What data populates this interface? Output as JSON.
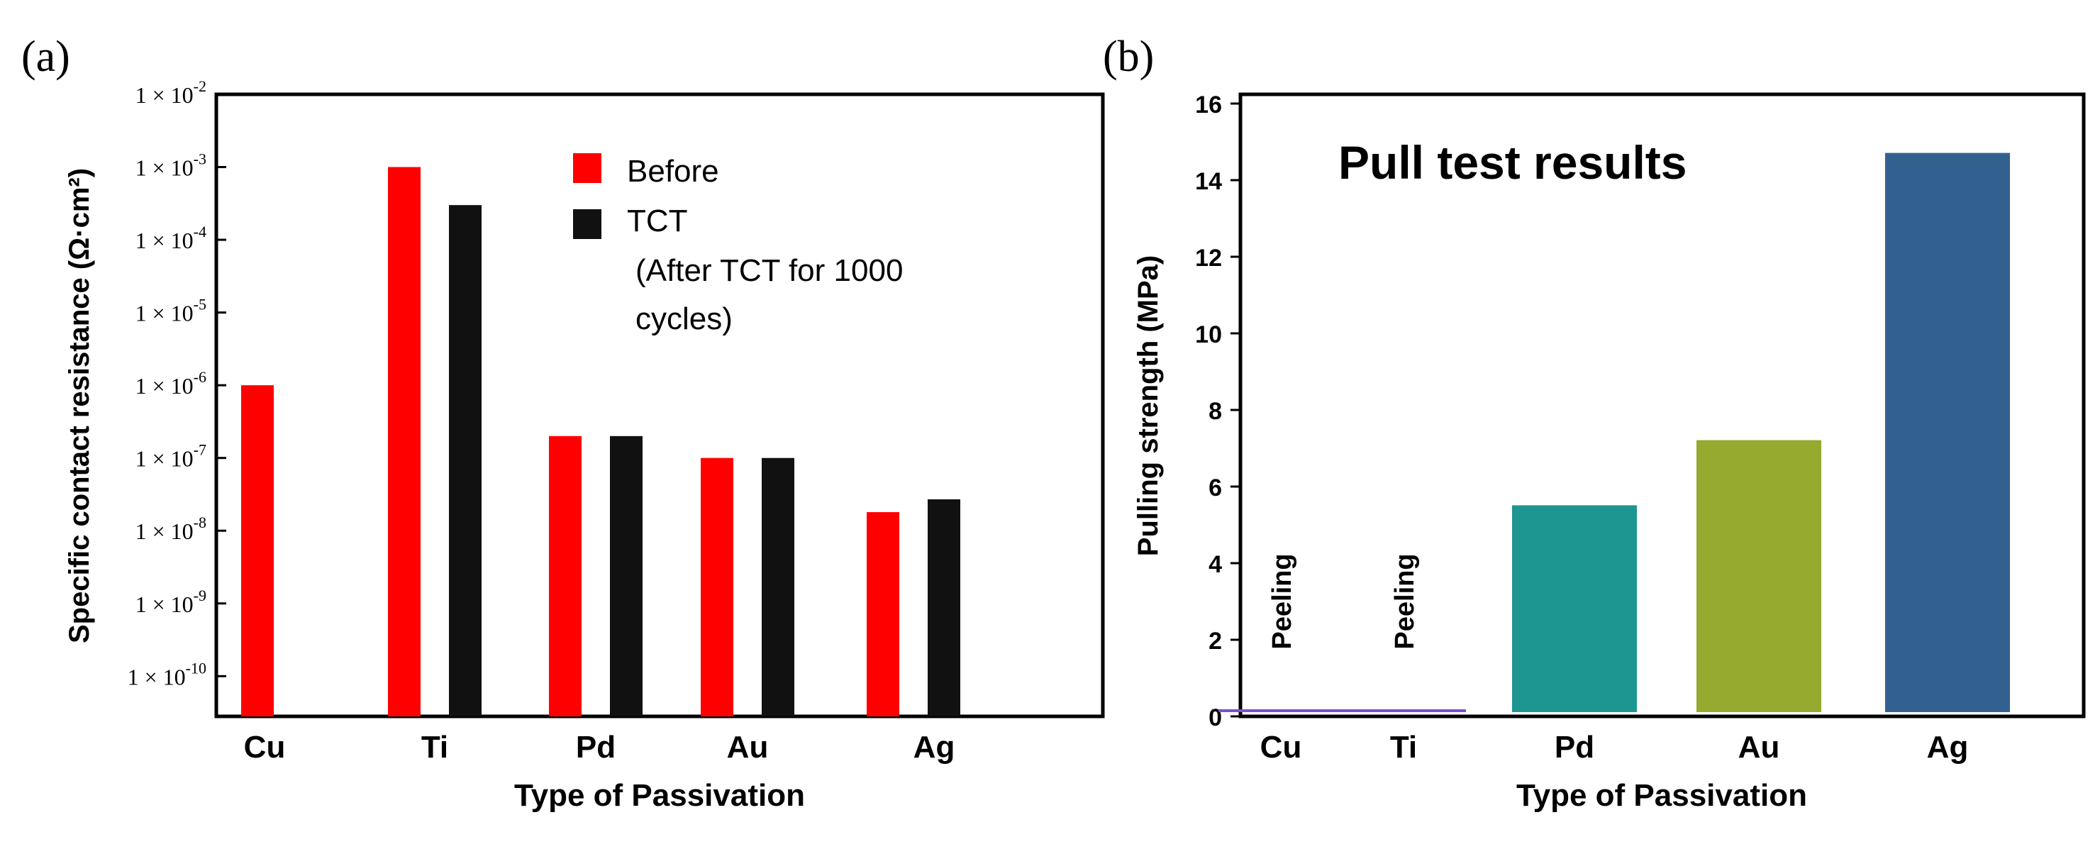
{
  "chart_data": [
    {
      "panel": "(a)",
      "type": "bar",
      "scale": "log",
      "xlabel": "Type of Passivation",
      "ylabel": "Specific contact resistance (Ω·cm²)",
      "categories": [
        "Cu",
        "Ti",
        "Pd",
        "Au",
        "Ag"
      ],
      "y_ticks": [
        {
          "base": "1 × 10",
          "exp": "-2",
          "value": 0.01
        },
        {
          "base": "1 × 10",
          "exp": "-3",
          "value": 0.001
        },
        {
          "base": "1 × 10",
          "exp": "-4",
          "value": 0.0001
        },
        {
          "base": "1 × 10",
          "exp": "-5",
          "value": 1e-05
        },
        {
          "base": "1 × 10",
          "exp": "-6",
          "value": 1e-06
        },
        {
          "base": "1 × 10",
          "exp": "-7",
          "value": 1e-07
        },
        {
          "base": "1 × 10",
          "exp": "-8",
          "value": 1e-08
        },
        {
          "base": "1 × 10",
          "exp": "-9",
          "value": 1e-09
        },
        {
          "base": "1 × 10",
          "exp": "-10",
          "value": 1e-10
        }
      ],
      "ylim": [
        2.8e-11,
        0.01
      ],
      "series": [
        {
          "name": "Before",
          "color": "#ff0000",
          "values": [
            1e-06,
            0.001,
            2e-07,
            1e-07,
            1.8e-08
          ]
        },
        {
          "name": "TCT",
          "color": "#111111",
          "values": [
            null,
            0.0003,
            2e-07,
            1e-07,
            2.7e-08
          ]
        }
      ],
      "legend": {
        "items": [
          "Before",
          "TCT"
        ],
        "note_line1": "(After TCT for 1000",
        "note_line2": "cycles)",
        "placement": "top-right"
      }
    },
    {
      "panel": "(b)",
      "type": "bar",
      "title": "Pull test results",
      "xlabel": "Type of Passivation",
      "ylabel": "Pulling strength (MPa)",
      "categories": [
        "Cu",
        "Ti",
        "Pd",
        "Au",
        "Ag"
      ],
      "values": [
        0,
        0,
        5.4,
        7.1,
        14.6
      ],
      "colors": [
        "#7b4fd0",
        "#7b4fd0",
        "#1d9590",
        "#95aa2e",
        "#33618f"
      ],
      "annotations": [
        {
          "category": "Cu",
          "text": "Peeling"
        },
        {
          "category": "Ti",
          "text": "Peeling"
        }
      ],
      "y_ticks": [
        0,
        2,
        4,
        6,
        8,
        10,
        12,
        14,
        16
      ],
      "ylim": [
        0,
        16
      ]
    }
  ]
}
